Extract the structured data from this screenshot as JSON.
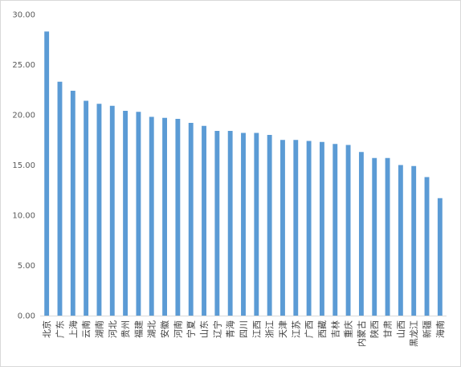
{
  "chart_data": {
    "type": "bar",
    "title": "",
    "xlabel": "",
    "ylabel": "",
    "ylim": [
      0,
      30
    ],
    "yticks": [
      "0.00",
      "5.00",
      "10.00",
      "15.00",
      "20.00",
      "25.00",
      "30.00"
    ],
    "grid": false,
    "legend": "none",
    "bar_color": "#5B9BD5",
    "categories": [
      "北京",
      "广东",
      "上海",
      "云南",
      "湖南",
      "河北",
      "贵州",
      "福建",
      "湖北",
      "安徽",
      "河南",
      "宁夏",
      "山东",
      "辽宁",
      "青海",
      "四川",
      "江西",
      "浙江",
      "天津",
      "江苏",
      "广西",
      "西藏",
      "吉林",
      "重庆",
      "内蒙古",
      "陕西",
      "甘肃",
      "山西",
      "黑龙江",
      "新疆",
      "海南"
    ],
    "values": [
      28.3,
      23.3,
      22.4,
      21.4,
      21.1,
      20.9,
      20.4,
      20.3,
      19.8,
      19.7,
      19.6,
      19.2,
      18.9,
      18.4,
      18.4,
      18.2,
      18.2,
      18.0,
      17.5,
      17.5,
      17.4,
      17.3,
      17.1,
      17.0,
      16.3,
      15.7,
      15.7,
      15.0,
      14.9,
      13.8,
      11.7
    ]
  }
}
